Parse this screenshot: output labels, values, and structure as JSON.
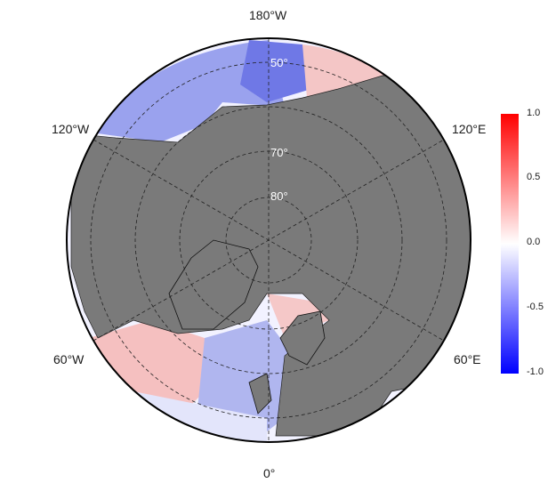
{
  "longitude_labels": {
    "top": "180°W",
    "bottom": "0°",
    "upper_left": "120°W",
    "upper_right": "120°E",
    "lower_left": "60°W",
    "lower_right": "60°E"
  },
  "latitude_labels": {
    "lat50": "50°",
    "lat70": "70°",
    "lat80": "80°"
  },
  "colorbar": {
    "ticks": [
      "1.0",
      "0.5",
      "0.0",
      "-0.5",
      "-1.0"
    ],
    "range": [
      -1.0,
      1.0
    ],
    "colors": {
      "max": "#ff0000",
      "mid": "#ffffff",
      "min": "#0000ff"
    }
  },
  "map_colors": {
    "land": "#7a7a7a",
    "ocean_neutral": "#ffffff",
    "grid": "#222222"
  }
}
